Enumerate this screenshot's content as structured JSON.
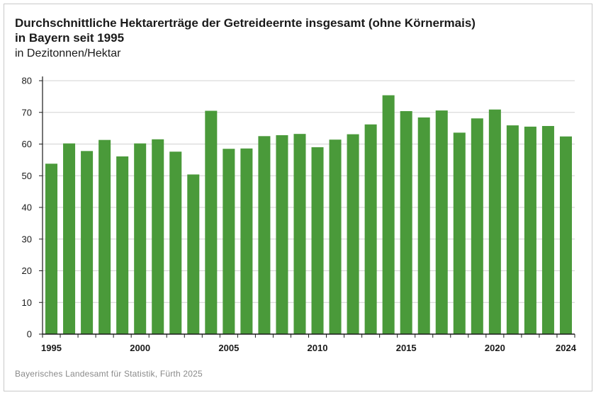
{
  "title_line1": "Durchschnittliche Hektarerträge der Getreideernte insgesamt (ohne Körnermais)",
  "title_line2": "in Bayern seit 1995",
  "subtitle": "in Dezitonnen/Hektar",
  "source": "Bayerisches Landesamt für Statistik, Fürth 2025",
  "colors": {
    "bar": "#4a9a3a",
    "grid": "#d2d2d2",
    "axis": "#1a1a1a"
  },
  "chart_data": {
    "type": "bar",
    "title": "Durchschnittliche Hektarerträge der Getreideernte insgesamt (ohne Körnermais) in Bayern seit 1995",
    "subtitle": "in Dezitonnen/Hektar",
    "xlabel": "",
    "ylabel": "",
    "ylim": [
      0,
      80
    ],
    "yticks": [
      0,
      10,
      20,
      30,
      40,
      50,
      60,
      70,
      80
    ],
    "xtick_labels": [
      "1995",
      "2000",
      "2005",
      "2010",
      "2015",
      "2020",
      "2024"
    ],
    "categories": [
      "1995",
      "1996",
      "1997",
      "1998",
      "1999",
      "2000",
      "2001",
      "2002",
      "2003",
      "2004",
      "2005",
      "2006",
      "2007",
      "2008",
      "2009",
      "2010",
      "2011",
      "2012",
      "2013",
      "2014",
      "2015",
      "2016",
      "2017",
      "2018",
      "2019",
      "2020",
      "2021",
      "2022",
      "2023",
      "2024"
    ],
    "values": [
      53.8,
      60.2,
      57.8,
      61.3,
      56.1,
      60.2,
      61.5,
      57.6,
      50.4,
      70.5,
      58.5,
      58.6,
      62.5,
      62.8,
      63.2,
      59.0,
      61.4,
      63.1,
      66.2,
      75.4,
      70.4,
      68.4,
      70.6,
      63.6,
      68.1,
      70.9,
      65.9,
      65.5,
      65.7,
      62.4
    ],
    "grid": true,
    "legend": "none"
  }
}
